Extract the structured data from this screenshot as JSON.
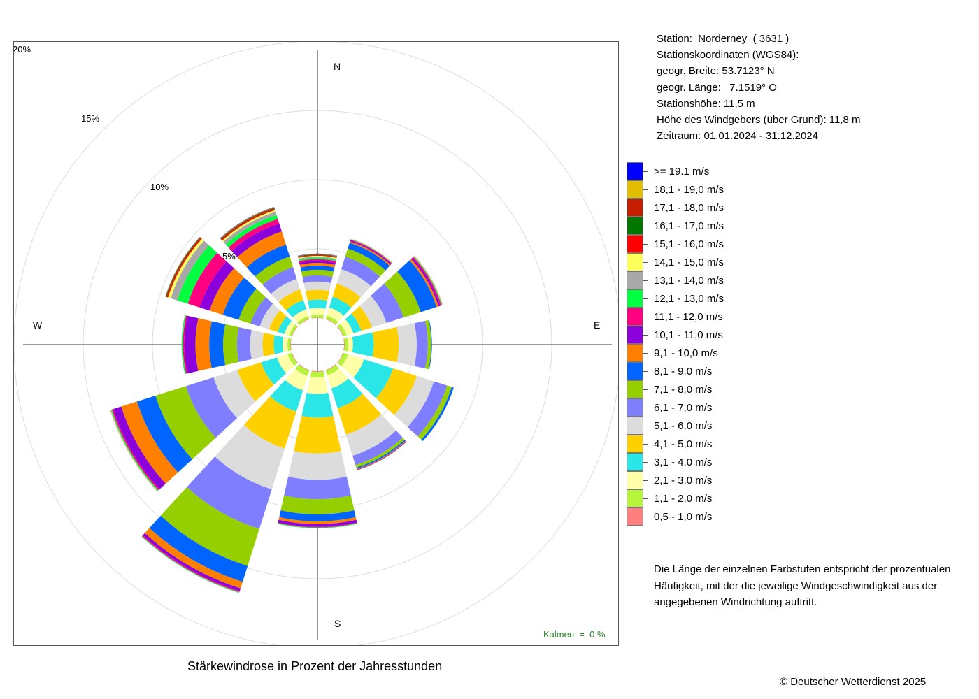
{
  "station": {
    "line1": "Station:  Norderney  ( 3631 )",
    "line2": "Stationskoordinaten (WGS84):",
    "line3": "geogr. Breite: 53.7123° N",
    "line4": "geogr. Länge:   7.1519° O",
    "line5": "Stationshöhe: 11,5 m",
    "line6": "Höhe des Windgebers (über Grund): 11,8 m",
    "line7": "Zeitraum: 01.01.2024 - 31.12.2024"
  },
  "note": "Die Länge der einzelnen Farbstufen entspricht der prozentualen Häufigkeit, mit der die jeweilige Windgeschwindigkeit aus der angegebenen Windrichtung auftritt.",
  "calm": "Kalmen  =  0 %",
  "copyright": "© Deutscher Wetterdienst  2025",
  "chart_data": {
    "type": "windrose",
    "title": "Stärkewindrose in Prozent der Jahresstunden",
    "radial_ticks": [
      "5%",
      "10%",
      "15%",
      "20%"
    ],
    "radial_tick_values": [
      5,
      10,
      15,
      20
    ],
    "radial_max": 20,
    "directions_labels": {
      "north": "N",
      "east": "E",
      "south": "S",
      "west": "W"
    },
    "sector_angles_deg": [
      0,
      30,
      60,
      90,
      120,
      150,
      180,
      210,
      240,
      270,
      300,
      330
    ],
    "bins": [
      {
        "label": "0,5 - 1,0 m/s",
        "color": "#FF7F7F"
      },
      {
        "label": "1,1 - 2,0 m/s",
        "color": "#B5F43A"
      },
      {
        "label": "2,1 - 3,0 m/s",
        "color": "#FFFFA8"
      },
      {
        "label": "3,1 - 4,0 m/s",
        "color": "#2AE6E6"
      },
      {
        "label": "4,1 - 5,0 m/s",
        "color": "#FFD000"
      },
      {
        "label": "5,1 - 6,0 m/s",
        "color": "#DCDCDC"
      },
      {
        "label": "6,1 - 7,0 m/s",
        "color": "#7E7EFF"
      },
      {
        "label": "7,1 - 8,0 m/s",
        "color": "#96CF00"
      },
      {
        "label": "8,1 - 9,0 m/s",
        "color": "#0064FF"
      },
      {
        "label": "9,1 - 10,0 m/s",
        "color": "#FF8000"
      },
      {
        "label": "10,1 - 11,0 m/s",
        "color": "#8C00DC"
      },
      {
        "label": "11,1 - 12,0 m/s",
        "color": "#FF0080"
      },
      {
        "label": "12,1 - 13,0 m/s",
        "color": "#00FF40"
      },
      {
        "label": "13,1 - 14,0 m/s",
        "color": "#A8A8A8"
      },
      {
        "label": "14,1 - 15,0 m/s",
        "color": "#FFFF5A"
      },
      {
        "label": "15,1 - 16,0 m/s",
        "color": "#FF0000"
      },
      {
        "label": "16,1 - 17,0 m/s",
        "color": "#007800"
      },
      {
        "label": "17,1 - 18,0 m/s",
        "color": "#C81E00"
      },
      {
        "label": "18,1 - 19,0 m/s",
        "color": "#E1BE00"
      },
      {
        "label": ">= 19.1 m/s",
        "color": "#0000FF"
      }
    ],
    "sectors": [
      {
        "angle": 0,
        "values": [
          0.04,
          0.2,
          0.5,
          0.6,
          0.7,
          0.6,
          0.45,
          0.4,
          0.3,
          0.2,
          0.15,
          0.12,
          0.1,
          0.08,
          0.06,
          0.05,
          0.04,
          0.03,
          0.02,
          0.02
        ]
      },
      {
        "angle": 30,
        "values": [
          0.05,
          0.25,
          0.6,
          0.8,
          1.0,
          1.1,
          0.95,
          0.6,
          0.45,
          0.1,
          0.08,
          0.05,
          0.03,
          0.02,
          0.01,
          0.01,
          0.0,
          0.0,
          0.0,
          0.0
        ]
      },
      {
        "angle": 60,
        "values": [
          0.05,
          0.25,
          0.5,
          0.6,
          0.8,
          1.1,
          1.3,
          1.3,
          1.2,
          0.15,
          0.12,
          0.1,
          0.05,
          0.03,
          0.02,
          0.01,
          0.0,
          0.0,
          0.0,
          0.0
        ]
      },
      {
        "angle": 90,
        "values": [
          0.05,
          0.25,
          0.35,
          1.5,
          1.8,
          1.3,
          0.8,
          0.25,
          0.05,
          0.0,
          0.0,
          0.0,
          0.0,
          0.0,
          0.0,
          0.0,
          0.0,
          0.0,
          0.0,
          0.0
        ]
      },
      {
        "angle": 120,
        "values": [
          0.05,
          0.35,
          1.2,
          2.2,
          1.8,
          1.3,
          1.0,
          0.35,
          0.15,
          0.0,
          0.0,
          0.0,
          0.0,
          0.0,
          0.0,
          0.0,
          0.0,
          0.0,
          0.0,
          0.0
        ]
      },
      {
        "angle": 150,
        "values": [
          0.05,
          0.35,
          1.0,
          1.5,
          2.0,
          1.6,
          0.7,
          0.2,
          0.1,
          0.05,
          0.03,
          0.02,
          0.01,
          0.0,
          0.0,
          0.0,
          0.0,
          0.0,
          0.0,
          0.0
        ]
      },
      {
        "angle": 180,
        "values": [
          0.05,
          0.4,
          1.2,
          1.7,
          2.6,
          1.9,
          1.4,
          1.1,
          0.5,
          0.2,
          0.2,
          0.05,
          0.05,
          0.0,
          0.0,
          0.0,
          0.0,
          0.0,
          0.0,
          0.0
        ]
      },
      {
        "angle": 210,
        "values": [
          0.05,
          0.4,
          1.1,
          1.6,
          2.8,
          3.1,
          3.0,
          2.8,
          1.2,
          0.5,
          0.2,
          0.08,
          0.05,
          0.02,
          0.0,
          0.0,
          0.0,
          0.0,
          0.0,
          0.0
        ]
      },
      {
        "angle": 240,
        "values": [
          0.05,
          0.3,
          0.8,
          1.2,
          1.8,
          1.8,
          2.1,
          2.3,
          1.4,
          1.2,
          0.6,
          0.1,
          0.07,
          0.03,
          0.02,
          0.01,
          0.0,
          0.0,
          0.0,
          0.0
        ]
      },
      {
        "angle": 270,
        "values": [
          0.05,
          0.2,
          0.35,
          0.65,
          0.8,
          0.9,
          0.95,
          1.0,
          1.0,
          1.0,
          0.8,
          0.1,
          0.08,
          0.02,
          0.0,
          0.0,
          0.0,
          0.0,
          0.0,
          0.0
        ]
      },
      {
        "angle": 300,
        "values": [
          0.05,
          0.2,
          0.35,
          0.5,
          0.65,
          0.7,
          0.7,
          0.9,
          1.2,
          1.0,
          0.75,
          0.9,
          0.8,
          0.5,
          0.2,
          0.1,
          0.05,
          0.03,
          0.02,
          0.01
        ]
      },
      {
        "angle": 330,
        "values": [
          0.05,
          0.2,
          0.5,
          0.7,
          0.8,
          0.8,
          0.9,
          0.8,
          0.9,
          1.0,
          0.6,
          0.35,
          0.3,
          0.25,
          0.12,
          0.1,
          0.05,
          0.04,
          0.03,
          0.02
        ]
      }
    ]
  }
}
